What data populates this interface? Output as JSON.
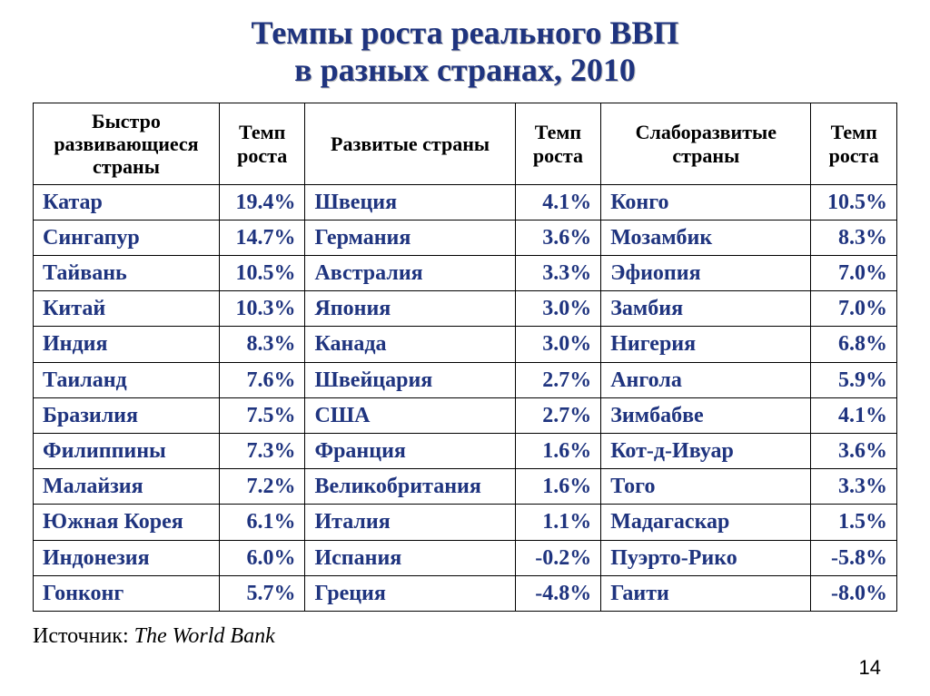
{
  "title_line1": "Темпы роста реального ВВП",
  "title_line2": "в разных странах, 2010",
  "headers": {
    "col1": "Быстро развивающиеся страны",
    "col2": "Темп роста",
    "col3": "Развитые страны",
    "col4": "Темп роста",
    "col5": "Слаборазвитые страны",
    "col6": "Темп роста"
  },
  "rows": [
    {
      "c1": "Катар",
      "r1": "19.4%",
      "c2": "Швеция",
      "r2": "4.1%",
      "c3": "Конго",
      "r3": "10.5%"
    },
    {
      "c1": "Сингапур",
      "r1": "14.7%",
      "c2": "Германия",
      "r2": "3.6%",
      "c3": "Мозамбик",
      "r3": "8.3%"
    },
    {
      "c1": "Тайвань",
      "r1": "10.5%",
      "c2": "Австралия",
      "r2": "3.3%",
      "c3": "Эфиопия",
      "r3": "7.0%"
    },
    {
      "c1": "Китай",
      "r1": "10.3%",
      "c2": "Япония",
      "r2": "3.0%",
      "c3": "Замбия",
      "r3": "7.0%"
    },
    {
      "c1": "Индия",
      "r1": "8.3%",
      "c2": "Канада",
      "r2": "3.0%",
      "c3": "Нигерия",
      "r3": "6.8%"
    },
    {
      "c1": "Таиланд",
      "r1": "7.6%",
      "c2": "Швейцария",
      "r2": "2.7%",
      "c3": "Ангола",
      "r3": "5.9%"
    },
    {
      "c1": "Бразилия",
      "r1": "7.5%",
      "c2": "США",
      "r2": "2.7%",
      "c3": "Зимбабве",
      "r3": "4.1%"
    },
    {
      "c1": "Филиппины",
      "r1": "7.3%",
      "c2": "Франция",
      "r2": "1.6%",
      "c3": "Кот-д-Ивуар",
      "r3": "3.6%"
    },
    {
      "c1": "Малайзия",
      "r1": "7.2%",
      "c2": "Великобритания",
      "r2": "1.6%",
      "c3": "Того",
      "r3": "3.3%"
    },
    {
      "c1": "Южная Корея",
      "r1": "6.1%",
      "c2": "Италия",
      "r2": "1.1%",
      "c3": "Мадагаскар",
      "r3": "1.5%"
    },
    {
      "c1": "Индонезия",
      "r1": "6.0%",
      "c2": "Испания",
      "r2": "-0.2%",
      "c3": "Пуэрто-Рико",
      "r3": "-5.8%"
    },
    {
      "c1": "Гонконг",
      "r1": "5.7%",
      "c2": "Греция",
      "r2": "-4.8%",
      "c3": "Гаити",
      "r3": "-8.0%"
    }
  ],
  "source_label": "Источник: ",
  "source_value": "The World Bank",
  "page_number": "14",
  "colors": {
    "title": "#1f347f",
    "cell_text": "#1f347f",
    "border": "#000000",
    "background": "#ffffff"
  },
  "fonts": {
    "family": "Times New Roman",
    "title_size_pt": 27,
    "header_size_pt": 16,
    "cell_size_pt": 18,
    "source_size_pt": 18
  },
  "table": {
    "type": "table",
    "col_widths_pct": [
      19.5,
      9,
      22,
      9,
      22,
      9
    ],
    "rate_align": "right",
    "country_align": "left",
    "header_align": "center"
  }
}
